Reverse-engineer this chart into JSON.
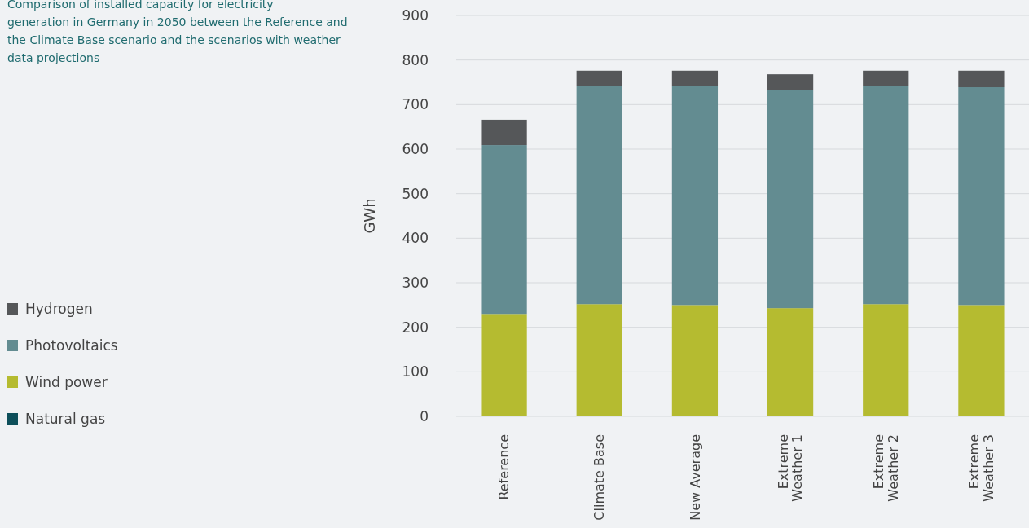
{
  "chart_data": {
    "type": "bar",
    "title": "Comparison of installed capacity for electricity generation in Germany in 2050 between the Reference and the Climate Base scenario and the scenarios with weather data projections",
    "ylabel": "GWh",
    "categories": [
      "Reference",
      "Climate Base",
      "New Average",
      "Extreme Weather 1",
      "Extreme Weather 2",
      "Extreme Weather 3"
    ],
    "stacked": true,
    "series": [
      {
        "name": "Natural gas",
        "color": "#0d4f5a",
        "values": [
          0,
          0,
          0,
          0,
          0,
          0
        ]
      },
      {
        "name": "Wind power",
        "color": "#b5bb30",
        "values": [
          230,
          252,
          250,
          243,
          252,
          250
        ]
      },
      {
        "name": "Photovoltaics",
        "color": "#638c91",
        "values": [
          379,
          489,
          491,
          490,
          489,
          489
        ]
      },
      {
        "name": "Hydrogen",
        "color": "#555759",
        "values": [
          57,
          35,
          35,
          35,
          35,
          37
        ]
      }
    ],
    "ylim": [
      0,
      900
    ],
    "yticks": [
      0,
      100,
      200,
      300,
      400,
      500,
      600,
      700,
      800,
      900
    ],
    "grid": "y",
    "legend": "left"
  }
}
